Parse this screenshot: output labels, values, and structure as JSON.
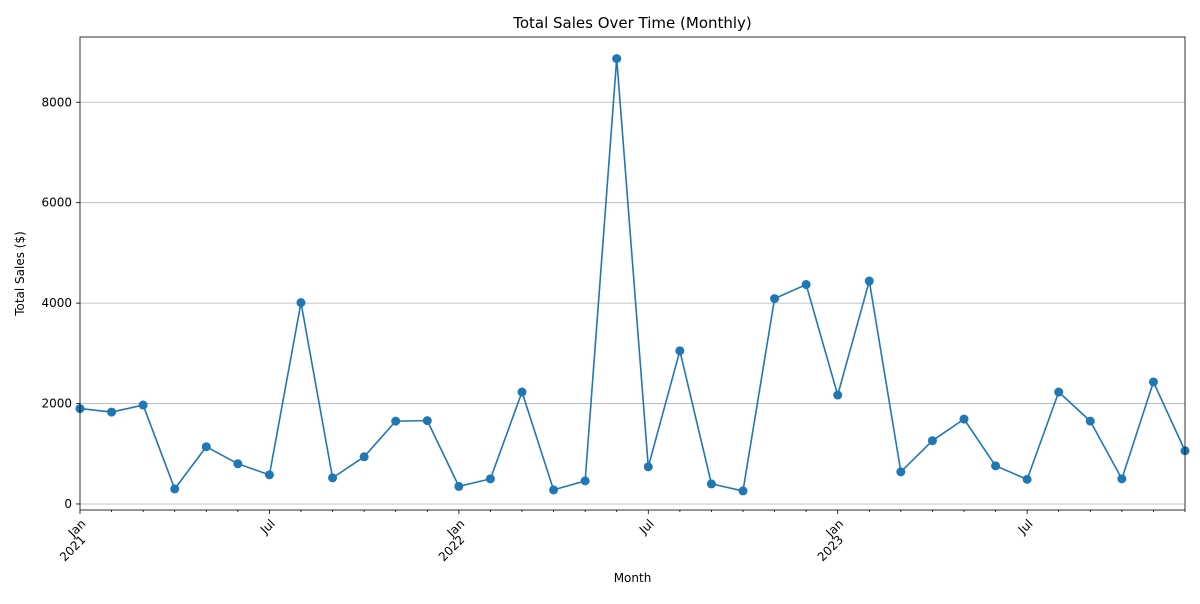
{
  "chart_data": {
    "type": "line",
    "title": "Total Sales Over Time (Monthly)",
    "xlabel": "Month",
    "ylabel": "Total Sales ($)",
    "x": [
      "2021-01",
      "2021-02",
      "2021-03",
      "2021-04",
      "2021-05",
      "2021-06",
      "2021-07",
      "2021-08",
      "2021-09",
      "2021-10",
      "2021-11",
      "2021-12",
      "2022-01",
      "2022-02",
      "2022-03",
      "2022-04",
      "2022-05",
      "2022-06",
      "2022-07",
      "2022-08",
      "2022-09",
      "2022-10",
      "2022-11",
      "2022-12",
      "2023-01",
      "2023-02",
      "2023-03",
      "2023-04",
      "2023-05",
      "2023-06",
      "2023-07",
      "2023-08",
      "2023-09",
      "2023-10",
      "2023-11",
      "2023-12"
    ],
    "series": [
      {
        "values": [
          1900,
          1830,
          1970,
          300,
          1140,
          800,
          580,
          4010,
          520,
          940,
          1650,
          1660,
          350,
          500,
          2230,
          280,
          460,
          8870,
          740,
          3050,
          400,
          260,
          4090,
          4370,
          2170,
          4440,
          640,
          1260,
          1690,
          760,
          490,
          2230,
          1650,
          500,
          2430,
          1060
        ],
        "color": "#1f77b4"
      }
    ],
    "ylim": [
      -120,
      9300
    ],
    "yticks": [
      "0",
      "2000",
      "4000",
      "6000",
      "8000"
    ],
    "xticks": [
      {
        "month": "2021-01",
        "line1": "Jan",
        "line2": "2021"
      },
      {
        "month": "2021-07",
        "line1": "Jul",
        "line2": ""
      },
      {
        "month": "2022-01",
        "line1": "Jan",
        "line2": "2022"
      },
      {
        "month": "2022-07",
        "line1": "Jul",
        "line2": ""
      },
      {
        "month": "2023-01",
        "line1": "Jan",
        "line2": "2023"
      },
      {
        "month": "2023-07",
        "line1": "Jul",
        "line2": ""
      }
    ],
    "grid": "y-major",
    "legend": "none"
  }
}
